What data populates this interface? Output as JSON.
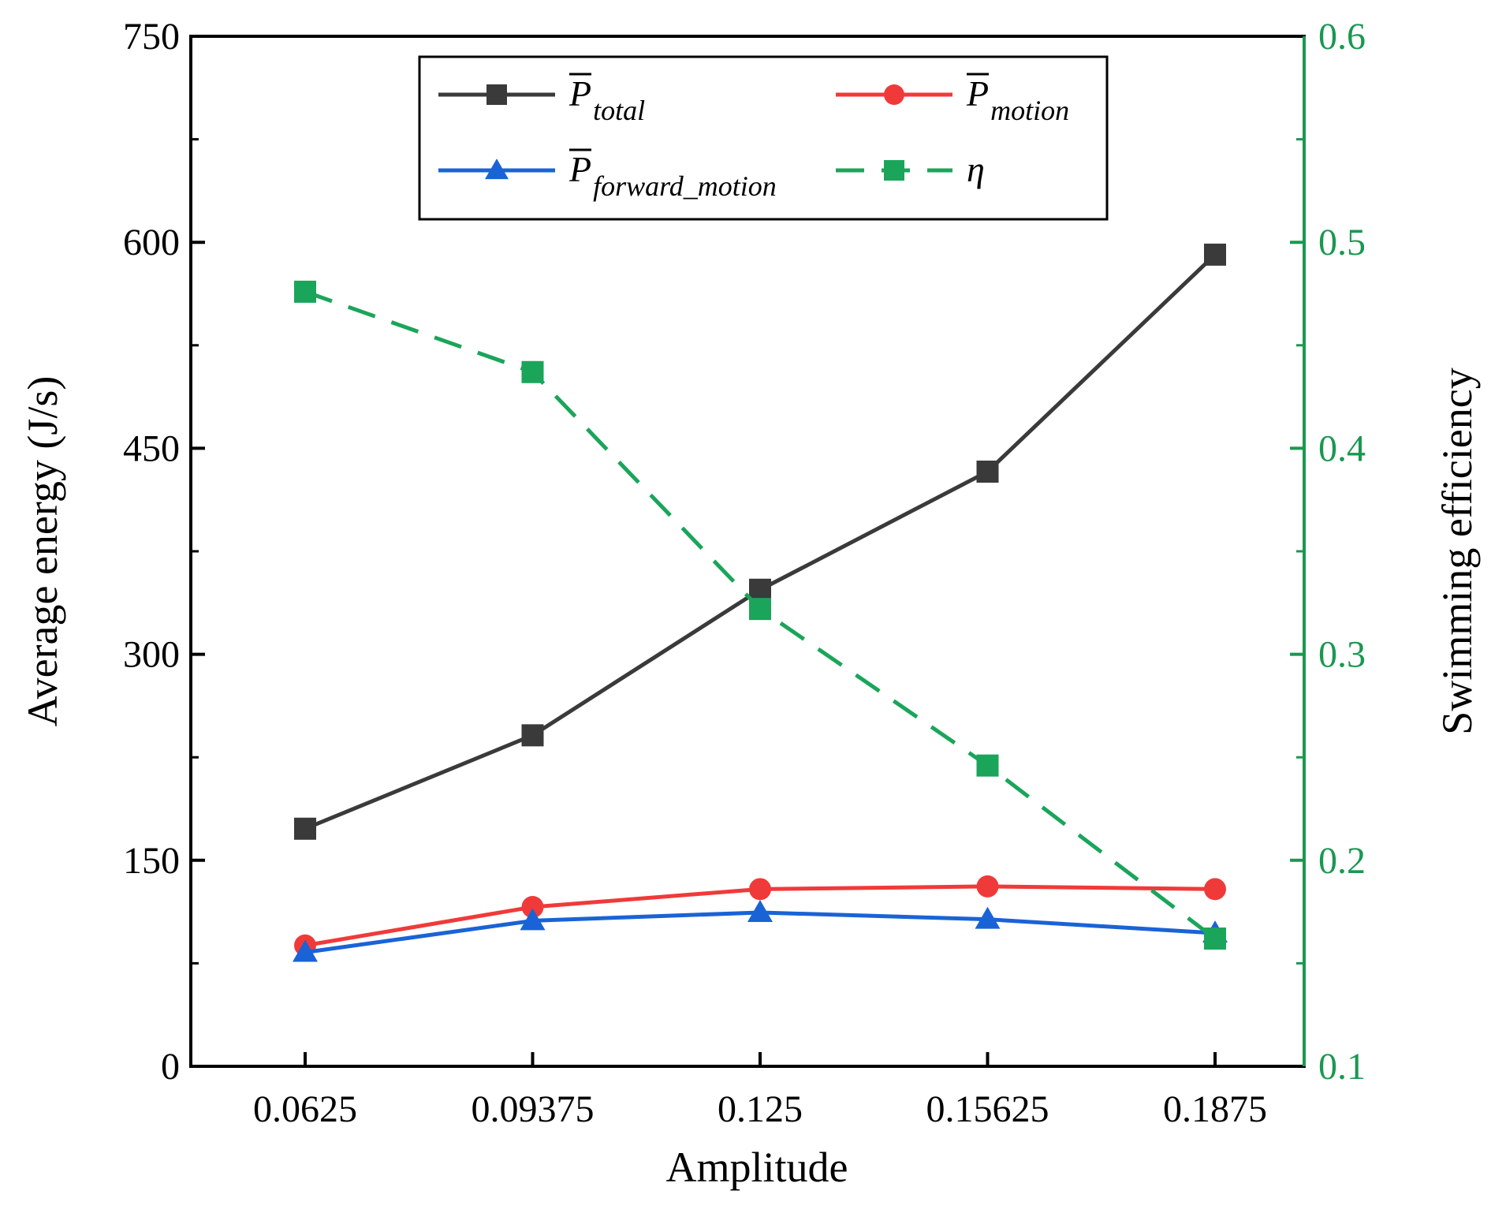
{
  "chart_data": {
    "type": "line",
    "xlabel": "Amplitude",
    "ylabel_left": "Average energy (J/s)",
    "ylabel_right": "Swimming efficiency",
    "categories": [
      "0.0625",
      "0.09375",
      "0.125",
      "0.15625",
      "0.1875"
    ],
    "y_left": {
      "range": [
        0,
        750
      ],
      "ticks": [
        0,
        150,
        300,
        450,
        600,
        750
      ],
      "tick_labels": [
        "0",
        "150",
        "300",
        "450",
        "600",
        "750"
      ]
    },
    "y_right": {
      "range": [
        0.1,
        0.6
      ],
      "ticks": [
        0.1,
        0.2,
        0.3,
        0.4,
        0.5,
        0.6
      ],
      "tick_labels": [
        "0.1",
        "0.2",
        "0.3",
        "0.4",
        "0.5",
        "0.6"
      ],
      "color": "#1a9850"
    },
    "legend_position": "top",
    "series": [
      {
        "key": "total",
        "symbol": "P",
        "subscript": "total",
        "axis": "left",
        "color": "#3a3a3a",
        "marker": "square",
        "dash": false,
        "values": [
          173,
          241,
          347,
          433,
          591
        ]
      },
      {
        "key": "motion",
        "symbol": "P",
        "subscript": "motion",
        "axis": "left",
        "color": "#f03a3a",
        "marker": "circle",
        "dash": false,
        "values": [
          88,
          116,
          129,
          131,
          129
        ]
      },
      {
        "key": "forward_motion",
        "symbol": "P",
        "subscript": "forward_motion",
        "axis": "left",
        "color": "#1a63d6",
        "marker": "triangle",
        "dash": false,
        "values": [
          83,
          106,
          112,
          107,
          97
        ]
      },
      {
        "key": "eta",
        "symbol": "η",
        "subscript": "",
        "axis": "right",
        "color": "#1aa55a",
        "marker": "square",
        "dash": true,
        "values": [
          0.476,
          0.437,
          0.322,
          0.246,
          0.162
        ]
      }
    ]
  }
}
